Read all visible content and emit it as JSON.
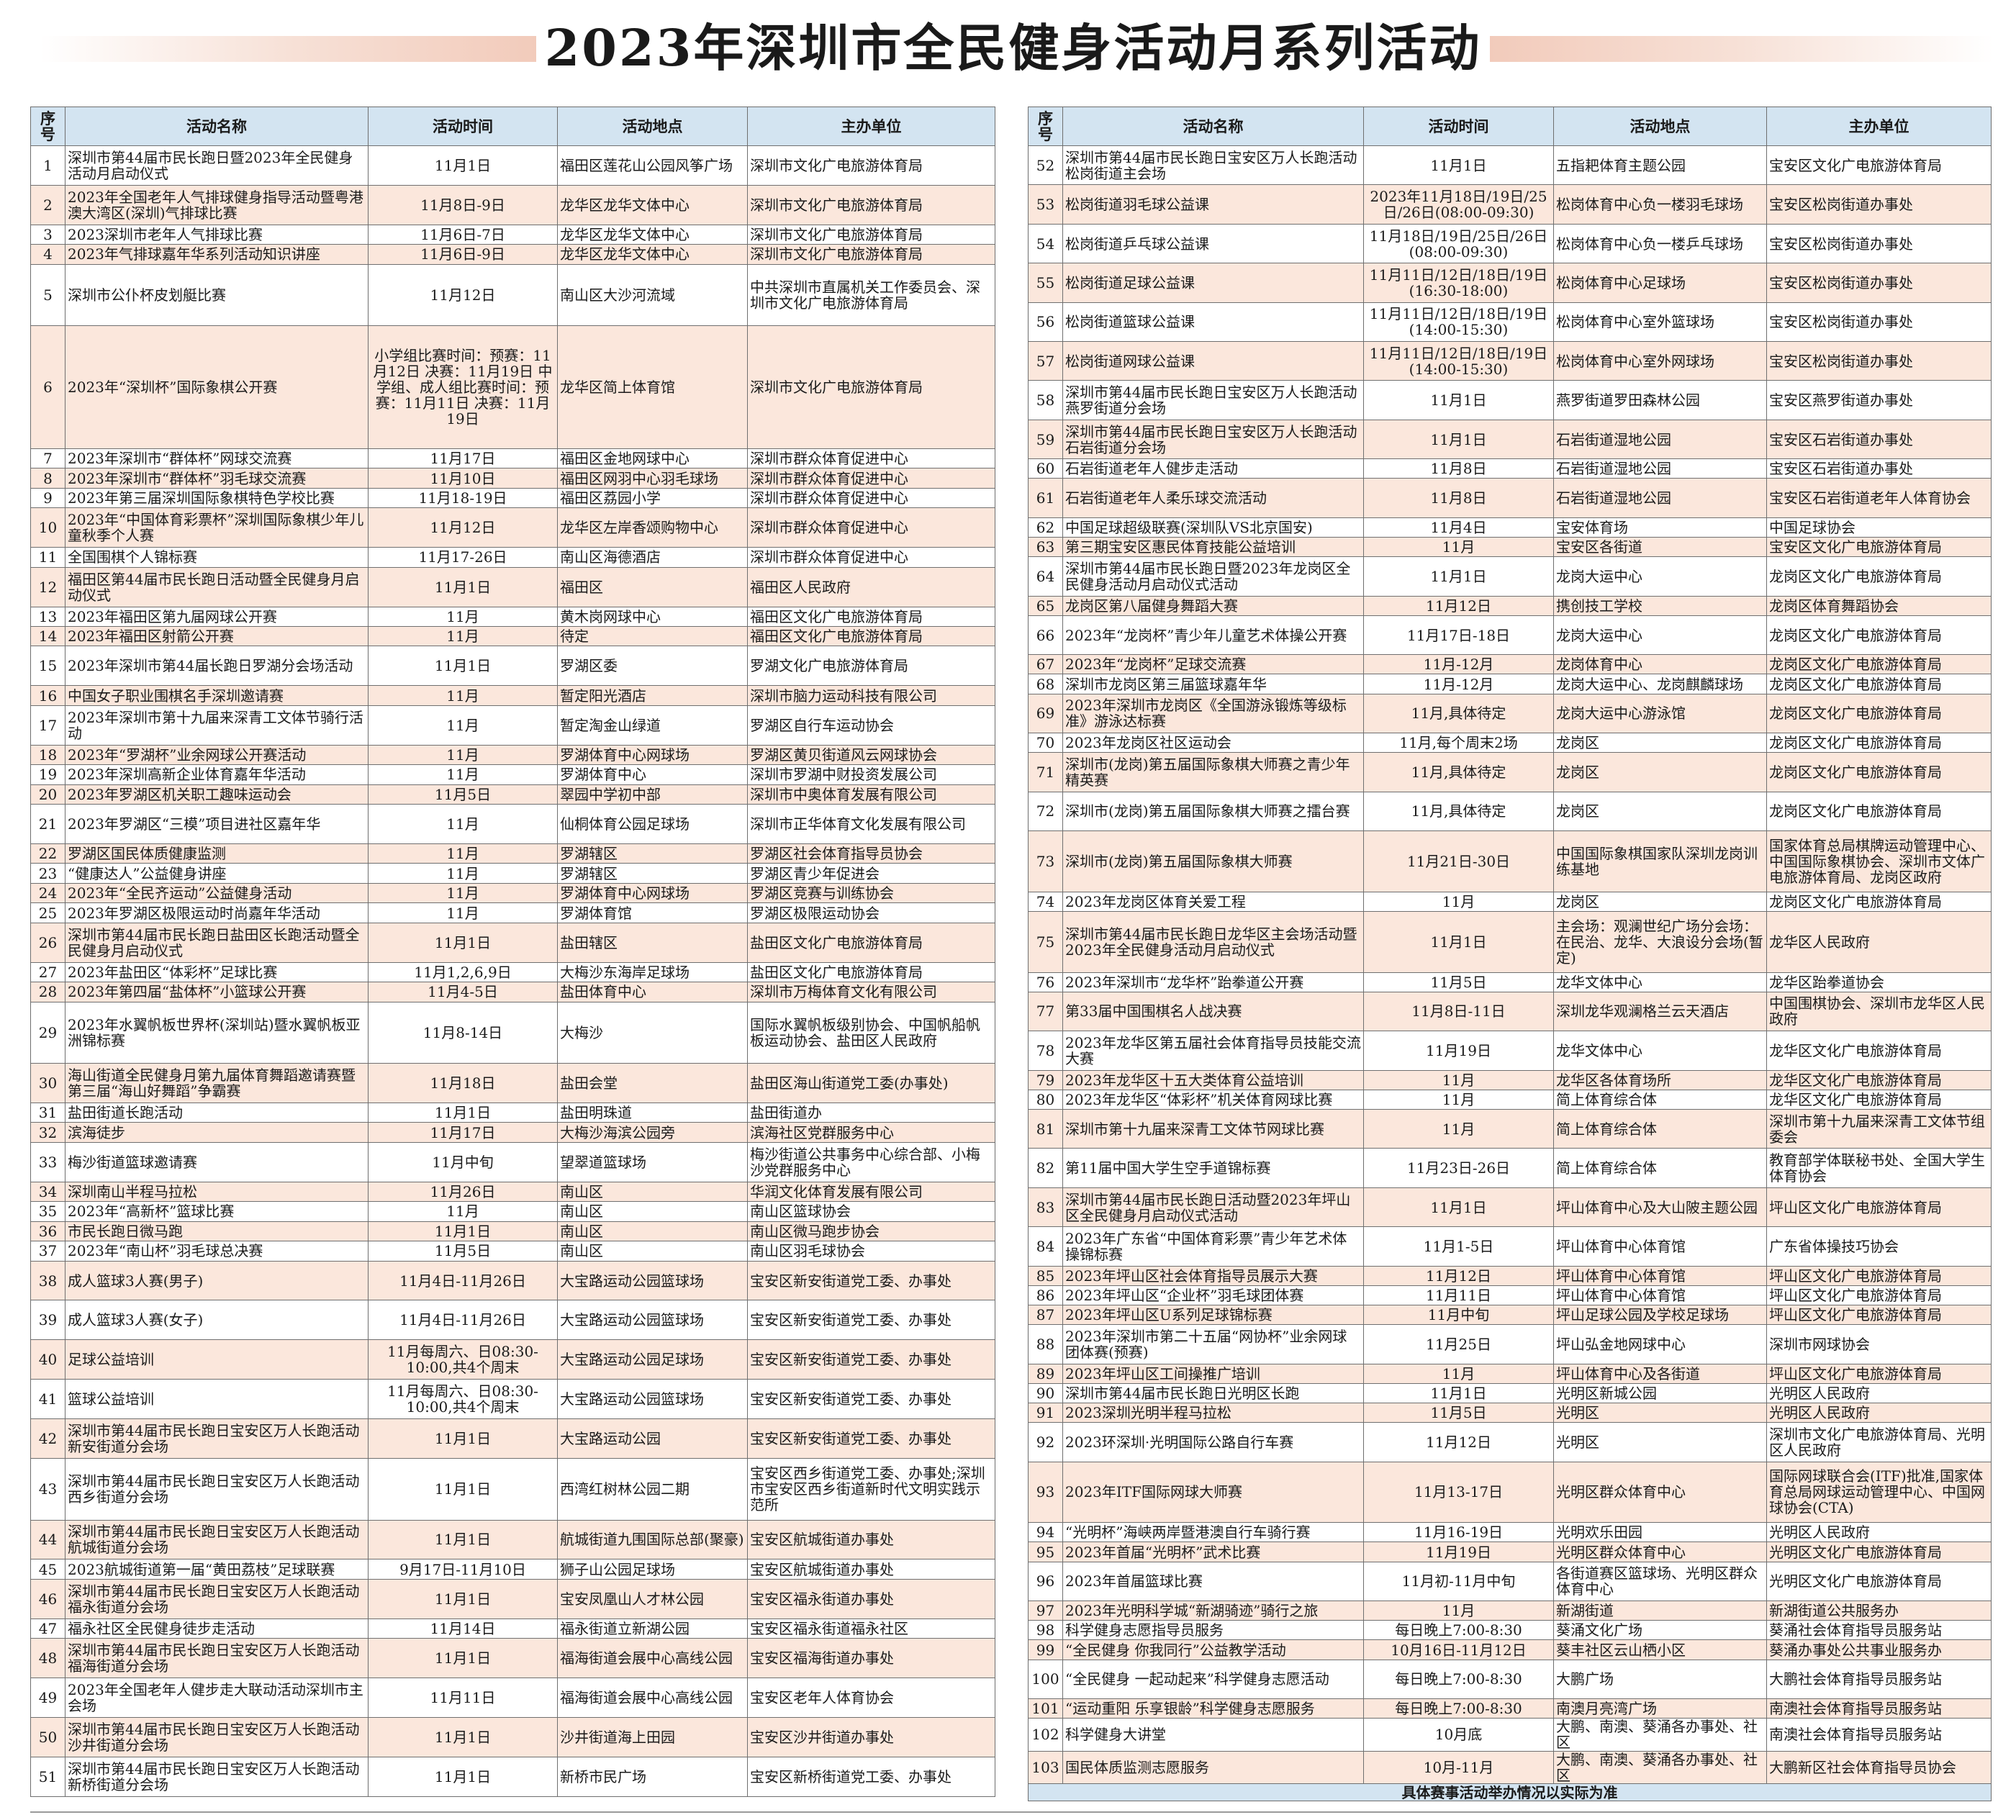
{
  "title": "2023年深圳市全民健身活动月系列活动",
  "headers": {
    "no": "序号",
    "name": "活动名称",
    "time": "活动时间",
    "place": "活动地点",
    "org": "主办单位"
  },
  "footnote": "具体赛事活动举办情况以实际为准",
  "left_rows": [
    {
      "no": "1",
      "name": "深圳市第44届市民长跑日暨2023年全民健身活动月启动仪式",
      "time": "11月1日",
      "place": "福田区莲花山公园风筝广场",
      "org": "深圳市文化广电旅游体育局",
      "h": 54
    },
    {
      "no": "2",
      "name": "2023年全国老年人气排球健身指导活动暨粤港澳大湾区(深圳)气排球比赛",
      "time": "11月8日-9日",
      "place": "龙华区龙华文体中心",
      "org": "深圳市文化广电旅游体育局",
      "h": 54
    },
    {
      "no": "3",
      "name": "2023深圳市老年人气排球比赛",
      "time": "11月6日-7日",
      "place": "龙华区龙华文体中心",
      "org": "深圳市文化广电旅游体育局",
      "h": 27
    },
    {
      "no": "4",
      "name": "2023年气排球嘉年华系列活动知识讲座",
      "time": "11月6日-9日",
      "place": "龙华区龙华文体中心",
      "org": "深圳市文化广电旅游体育局",
      "h": 27
    },
    {
      "no": "5",
      "name": "深圳市公仆杯皮划艇比赛",
      "time": "11月12日",
      "place": "南山区大沙河流域",
      "org": "中共深圳市直属机关工作委员会、深圳市文化广电旅游体育局",
      "h": 84
    },
    {
      "no": "6",
      "name": "2023年“深圳杯”国际象棋公开赛",
      "time": "小学组比赛时间：预赛：11月12日 决赛：11月19日 中学组、成人组比赛时间：预赛：11月11日 决赛：11月19日",
      "place": "龙华区简上体育馆",
      "org": "深圳市文化广电旅游体育局",
      "h": 168
    },
    {
      "no": "7",
      "name": "2023年深圳市“群体杯”网球交流赛",
      "time": "11月17日",
      "place": "福田区金地网球中心",
      "org": "深圳市群众体育促进中心",
      "h": 27
    },
    {
      "no": "8",
      "name": "2023年深圳市“群体杯”羽毛球交流赛",
      "time": "11月10日",
      "place": "福田区网羽中心羽毛球场",
      "org": "深圳市群众体育促进中心",
      "h": 27
    },
    {
      "no": "9",
      "name": "2023年第三届深圳国际象棋特色学校比赛",
      "time": "11月18-19日",
      "place": "福田区荔园小学",
      "org": "深圳市群众体育促进中心",
      "h": 27
    },
    {
      "no": "10",
      "name": "2023年“中国体育彩票杯”深圳国际象棋少年儿童秋季个人赛",
      "time": "11月12日",
      "place": "龙华区左岸香颂购物中心",
      "org": "深圳市群众体育促进中心",
      "h": 54
    },
    {
      "no": "11",
      "name": "全国围棋个人锦标赛",
      "time": "11月17-26日",
      "place": "南山区海德酒店",
      "org": "深圳市群众体育促进中心",
      "h": 27
    },
    {
      "no": "12",
      "name": "福田区第44届市民长跑日活动暨全民健身月启动仪式",
      "time": "11月1日",
      "place": "福田区",
      "org": "福田区人民政府",
      "h": 54
    },
    {
      "no": "13",
      "name": "2023年福田区第九届网球公开赛",
      "time": "11月",
      "place": "黄木岗网球中心",
      "org": "福田区文化广电旅游体育局",
      "h": 27
    },
    {
      "no": "14",
      "name": "2023年福田区射箭公开赛",
      "time": "11月",
      "place": "待定",
      "org": "福田区文化广电旅游体育局",
      "h": 27
    },
    {
      "no": "15",
      "name": "2023年深圳市第44届长跑日罗湖分会场活动",
      "time": "11月1日",
      "place": "罗湖区委",
      "org": "罗湖文化广电旅游体育局",
      "h": 54
    },
    {
      "no": "16",
      "name": "中国女子职业围棋名手深圳邀请赛",
      "time": "11月",
      "place": "暂定阳光酒店",
      "org": "深圳市脑力运动科技有限公司",
      "h": 27
    },
    {
      "no": "17",
      "name": "2023年深圳市第十九届来深青工文体节骑行活动",
      "time": "11月",
      "place": "暂定淘金山绿道",
      "org": "罗湖区自行车运动协会",
      "h": 54
    },
    {
      "no": "18",
      "name": "2023年“罗湖杯”业余网球公开赛活动",
      "time": "11月",
      "place": "罗湖体育中心网球场",
      "org": "罗湖区黄贝街道风云网球协会",
      "h": 27
    },
    {
      "no": "19",
      "name": "2023年深圳高新企业体育嘉年华活动",
      "time": "11月",
      "place": "罗湖体育中心",
      "org": "深圳市罗湖中财投资发展公司",
      "h": 27
    },
    {
      "no": "20",
      "name": "2023年罗湖区机关职工趣味运动会",
      "time": "11月5日",
      "place": "翠园中学初中部",
      "org": "深圳市中奥体育发展有限公司",
      "h": 27
    },
    {
      "no": "21",
      "name": "2023年罗湖区“三模”项目进社区嘉年华",
      "time": "11月",
      "place": "仙桐体育公园足球场",
      "org": "深圳市正华体育文化发展有限公司",
      "h": 54
    },
    {
      "no": "22",
      "name": "罗湖区国民体质健康监测",
      "time": "11月",
      "place": "罗湖辖区",
      "org": "罗湖区社会体育指导员协会",
      "h": 27
    },
    {
      "no": "23",
      "name": "“健康达人”公益健身讲座",
      "time": "11月",
      "place": "罗湖辖区",
      "org": "罗湖区青少年促进会",
      "h": 27
    },
    {
      "no": "24",
      "name": "2023年“全民齐运动”公益健身活动",
      "time": "11月",
      "place": "罗湖体育中心网球场",
      "org": "罗湖区竞赛与训练协会",
      "h": 27
    },
    {
      "no": "25",
      "name": "2023年罗湖区极限运动时尚嘉年华活动",
      "time": "11月",
      "place": "罗湖体育馆",
      "org": "罗湖区极限运动协会",
      "h": 27
    },
    {
      "no": "26",
      "name": "深圳市第44届市民长跑日盐田区长跑活动暨全民健身月启动仪式",
      "time": "11月1日",
      "place": "盐田辖区",
      "org": "盐田区文化广电旅游体育局",
      "h": 54
    },
    {
      "no": "27",
      "name": "2023年盐田区“体彩杯”足球比赛",
      "time": "11月1,2,6,9日",
      "place": "大梅沙东海岸足球场",
      "org": "盐田区文化广电旅游体育局",
      "h": 27
    },
    {
      "no": "28",
      "name": "2023年第四届“盐体杯”小篮球公开赛",
      "time": "11月4-5日",
      "place": "盐田体育中心",
      "org": "深圳市万梅体育文化有限公司",
      "h": 27
    },
    {
      "no": "29",
      "name": "2023年水翼帆板世界杯(深圳站)暨水翼帆板亚洲锦标赛",
      "time": "11月8-14日",
      "place": "大梅沙",
      "org": "国际水翼帆板级别协会、中国帆船帆板运动协会、盐田区人民政府",
      "h": 84
    },
    {
      "no": "30",
      "name": "海山街道全民健身月第九届体育舞蹈邀请赛暨第三届“海山好舞蹈”争霸赛",
      "time": "11月18日",
      "place": "盐田会堂",
      "org": "盐田区海山街道党工委(办事处)",
      "h": 54
    },
    {
      "no": "31",
      "name": "盐田街道长跑活动",
      "time": "11月1日",
      "place": "盐田明珠道",
      "org": "盐田街道办",
      "h": 27
    },
    {
      "no": "32",
      "name": "滨海徒步",
      "time": "11月17日",
      "place": "大梅沙海滨公园旁",
      "org": "滨海社区党群服务中心",
      "h": 27
    },
    {
      "no": "33",
      "name": "梅沙街道篮球邀请赛",
      "time": "11月中旬",
      "place": "望翠道篮球场",
      "org": "梅沙街道公共事务中心综合部、小梅沙党群服务中心",
      "h": 54
    },
    {
      "no": "34",
      "name": "深圳南山半程马拉松",
      "time": "11月26日",
      "place": "南山区",
      "org": "华润文化体育发展有限公司",
      "h": 27
    },
    {
      "no": "35",
      "name": "2023年“高新杯”篮球比赛",
      "time": "11月",
      "place": "南山区",
      "org": "南山区篮球协会",
      "h": 27
    },
    {
      "no": "36",
      "name": "市民长跑日微马跑",
      "time": "11月1日",
      "place": "南山区",
      "org": "南山区微马跑步协会",
      "h": 27
    },
    {
      "no": "37",
      "name": "2023年“南山杯”羽毛球总决赛",
      "time": "11月5日",
      "place": "南山区",
      "org": "南山区羽毛球协会",
      "h": 27
    },
    {
      "no": "38",
      "name": "成人篮球3人赛(男子)",
      "time": "11月4日-11月26日",
      "place": "大宝路运动公园篮球场",
      "org": "宝安区新安街道党工委、办事处",
      "h": 54
    },
    {
      "no": "39",
      "name": "成人篮球3人赛(女子)",
      "time": "11月4日-11月26日",
      "place": "大宝路运动公园篮球场",
      "org": "宝安区新安街道党工委、办事处",
      "h": 54
    },
    {
      "no": "40",
      "name": "足球公益培训",
      "time": "11月每周六、日08:30-10:00,共4个周末",
      "place": "大宝路运动公园足球场",
      "org": "宝安区新安街道党工委、办事处",
      "h": 54
    },
    {
      "no": "41",
      "name": "篮球公益培训",
      "time": "11月每周六、日08:30-10:00,共4个周末",
      "place": "大宝路运动公园篮球场",
      "org": "宝安区新安街道党工委、办事处",
      "h": 54
    },
    {
      "no": "42",
      "name": "深圳市第44届市民长跑日宝安区万人长跑活动新安街道分会场",
      "time": "11月1日",
      "place": "大宝路运动公园",
      "org": "宝安区新安街道党工委、办事处",
      "h": 54
    },
    {
      "no": "43",
      "name": "深圳市第44届市民长跑日宝安区万人长跑活动西乡街道分会场",
      "time": "11月1日",
      "place": "西湾红树林公园二期",
      "org": "宝安区西乡街道党工委、办事处;深圳市宝安区西乡街道新时代文明实践示范所",
      "h": 84
    },
    {
      "no": "44",
      "name": "深圳市第44届市民长跑日宝安区万人长跑活动航城街道分会场",
      "time": "11月1日",
      "place": "航城街道九围国际总部(聚豪)",
      "org": "宝安区航城街道办事处",
      "h": 54
    },
    {
      "no": "45",
      "name": "2023航城街道第一届“黄田荔枝”足球联赛",
      "time": "9月17日-11月10日",
      "place": "狮子山公园足球场",
      "org": "宝安区航城街道办事处",
      "h": 27
    },
    {
      "no": "46",
      "name": "深圳市第44届市民长跑日宝安区万人长跑活动福永街道分会场",
      "time": "11月1日",
      "place": "宝安凤凰山人才林公园",
      "org": "宝安区福永街道办事处",
      "h": 54
    },
    {
      "no": "47",
      "name": "福永社区全民健身徒步走活动",
      "time": "11月14日",
      "place": "福永街道立新湖公园",
      "org": "宝安区福永街道福永社区",
      "h": 27
    },
    {
      "no": "48",
      "name": "深圳市第44届市民长跑日宝安区万人长跑活动福海街道分会场",
      "time": "11月1日",
      "place": "福海街道会展中心高线公园",
      "org": "宝安区福海街道办事处",
      "h": 54
    },
    {
      "no": "49",
      "name": "2023年全国老年人健步走大联动活动深圳市主会场",
      "time": "11月11日",
      "place": "福海街道会展中心高线公园",
      "org": "宝安区老年人体育协会",
      "h": 54
    },
    {
      "no": "50",
      "name": "深圳市第44届市民长跑日宝安区万人长跑活动沙井街道分会场",
      "time": "11月1日",
      "place": "沙井街道海上田园",
      "org": "宝安区沙井街道办事处",
      "h": 54
    },
    {
      "no": "51",
      "name": "深圳市第44届市民长跑日宝安区万人长跑活动新桥街道分会场",
      "time": "11月1日",
      "place": "新桥市民广场",
      "org": "宝安区新桥街道党工委、办事处",
      "h": 54
    }
  ],
  "right_rows": [
    {
      "no": "52",
      "name": "深圳市第44届市民长跑日宝安区万人长跑活动松岗街道主会场",
      "time": "11月1日",
      "place": "五指耙体育主题公园",
      "org": "宝安区文化广电旅游体育局",
      "h": 54
    },
    {
      "no": "53",
      "name": "松岗街道羽毛球公益课",
      "time": "2023年11月18日/19日/25日/26日(08:00-09:30)",
      "place": "松岗体育中心负一楼羽毛球场",
      "org": "宝安区松岗街道办事处",
      "h": 54
    },
    {
      "no": "54",
      "name": "松岗街道乒乓球公益课",
      "time": "11月18日/19日/25日/26日(08:00-09:30)",
      "place": "松岗体育中心负一楼乒乓球场",
      "org": "宝安区松岗街道办事处",
      "h": 54
    },
    {
      "no": "55",
      "name": "松岗街道足球公益课",
      "time": "11月11日/12日/18日/19日(16:30-18:00)",
      "place": "松岗体育中心足球场",
      "org": "宝安区松岗街道办事处",
      "h": 54
    },
    {
      "no": "56",
      "name": "松岗街道篮球公益课",
      "time": "11月11日/12日/18日/19日(14:00-15:30)",
      "place": "松岗体育中心室外篮球场",
      "org": "宝安区松岗街道办事处",
      "h": 54
    },
    {
      "no": "57",
      "name": "松岗街道网球公益课",
      "time": "11月11日/12日/18日/19日(14:00-15:30)",
      "place": "松岗体育中心室外网球场",
      "org": "宝安区松岗街道办事处",
      "h": 54
    },
    {
      "no": "58",
      "name": "深圳市第44届市民长跑日宝安区万人长跑活动燕罗街道分会场",
      "time": "11月1日",
      "place": "燕罗街道罗田森林公园",
      "org": "宝安区燕罗街道办事处",
      "h": 54
    },
    {
      "no": "59",
      "name": "深圳市第44届市民长跑日宝安区万人长跑活动石岩街道分会场",
      "time": "11月1日",
      "place": "石岩街道湿地公园",
      "org": "宝安区石岩街道办事处",
      "h": 54
    },
    {
      "no": "60",
      "name": "石岩街道老年人健步走活动",
      "time": "11月8日",
      "place": "石岩街道湿地公园",
      "org": "宝安区石岩街道办事处",
      "h": 27
    },
    {
      "no": "61",
      "name": "石岩街道老年人柔乐球交流活动",
      "time": "11月8日",
      "place": "石岩街道湿地公园",
      "org": "宝安区石岩街道老年人体育协会",
      "h": 54
    },
    {
      "no": "62",
      "name": "中国足球超级联赛(深圳队VS北京国安)",
      "time": "11月4日",
      "place": "宝安体育场",
      "org": "中国足球协会",
      "h": 27
    },
    {
      "no": "63",
      "name": "第三期宝安区惠民体育技能公益培训",
      "time": "11月",
      "place": "宝安区各街道",
      "org": "宝安区文化广电旅游体育局",
      "h": 27
    },
    {
      "no": "64",
      "name": "深圳市第44届市民长跑日暨2023年龙岗区全民健身活动月启动仪式活动",
      "time": "11月1日",
      "place": "龙岗大运中心",
      "org": "龙岗区文化广电旅游体育局",
      "h": 54
    },
    {
      "no": "65",
      "name": "龙岗区第八届健身舞蹈大赛",
      "time": "11月12日",
      "place": "携创技工学校",
      "org": "龙岗区体育舞蹈协会",
      "h": 27
    },
    {
      "no": "66",
      "name": "2023年“龙岗杯”青少年儿童艺术体操公开赛",
      "time": "11月17日-18日",
      "place": "龙岗大运中心",
      "org": "龙岗区文化广电旅游体育局",
      "h": 54
    },
    {
      "no": "67",
      "name": "2023年“龙岗杯”足球交流赛",
      "time": "11月-12月",
      "place": "龙岗体育中心",
      "org": "龙岗区文化广电旅游体育局",
      "h": 27
    },
    {
      "no": "68",
      "name": "深圳市龙岗区第三届篮球嘉年华",
      "time": "11月-12月",
      "place": "龙岗大运中心、龙岗麒麟球场",
      "org": "龙岗区文化广电旅游体育局",
      "h": 27
    },
    {
      "no": "69",
      "name": "2023年深圳市龙岗区《全国游泳锻炼等级标准》游泳达标赛",
      "time": "11月,具体待定",
      "place": "龙岗大运中心游泳馆",
      "org": "龙岗区文化广电旅游体育局",
      "h": 54
    },
    {
      "no": "70",
      "name": "2023年龙岗区社区运动会",
      "time": "11月,每个周末2场",
      "place": "龙岗区",
      "org": "龙岗区文化广电旅游体育局",
      "h": 27
    },
    {
      "no": "71",
      "name": "深圳市(龙岗)第五届国际象棋大师赛之青少年精英赛",
      "time": "11月,具体待定",
      "place": "龙岗区",
      "org": "龙岗区文化广电旅游体育局",
      "h": 54
    },
    {
      "no": "72",
      "name": "深圳市(龙岗)第五届国际象棋大师赛之擂台赛",
      "time": "11月,具体待定",
      "place": "龙岗区",
      "org": "龙岗区文化广电旅游体育局",
      "h": 54
    },
    {
      "no": "73",
      "name": "深圳市(龙岗)第五届国际象棋大师赛",
      "time": "11月21日-30日",
      "place": "中国国际象棋国家队深圳龙岗训练基地",
      "org": "国家体育总局棋牌运动管理中心、中国国际象棋协会、深圳市文体广电旅游体育局、龙岗区政府",
      "h": 84
    },
    {
      "no": "74",
      "name": "2023年龙岗区体育关爱工程",
      "time": "11月",
      "place": "龙岗区",
      "org": "龙岗区文化广电旅游体育局",
      "h": 27
    },
    {
      "no": "75",
      "name": "深圳市第44届市民长跑日龙华区主会场活动暨2023年全民健身活动月启动仪式",
      "time": "11月1日",
      "place": "主会场：观澜世纪广场分会场：在民治、龙华、大浪设分会场(暂定)",
      "org": "龙华区人民政府",
      "h": 84
    },
    {
      "no": "76",
      "name": "2023年深圳市“龙华杯”跆拳道公开赛",
      "time": "11月5日",
      "place": "龙华文体中心",
      "org": "龙华区跆拳道协会",
      "h": 27
    },
    {
      "no": "77",
      "name": "第33届中国围棋名人战决赛",
      "time": "11月8日-11日",
      "place": "深圳龙华观澜格兰云天酒店",
      "org": "中国围棋协会、深圳市龙华区人民政府",
      "h": 54
    },
    {
      "no": "78",
      "name": "2023年龙华区第五届社会体育指导员技能交流大赛",
      "time": "11月19日",
      "place": "龙华文体中心",
      "org": "龙华区文化广电旅游体育局",
      "h": 54
    },
    {
      "no": "79",
      "name": "2023年龙华区十五大类体育公益培训",
      "time": "11月",
      "place": "龙华区各体育场所",
      "org": "龙华区文化广电旅游体育局",
      "h": 27
    },
    {
      "no": "80",
      "name": "2023年龙华区“体彩杯”机关体育网球比赛",
      "time": "11月",
      "place": "简上体育综合体",
      "org": "龙华区文化广电旅游体育局",
      "h": 27
    },
    {
      "no": "81",
      "name": "深圳市第十九届来深青工文体节网球比赛",
      "time": "11月",
      "place": "简上体育综合体",
      "org": "深圳市第十九届来深青工文体节组委会",
      "h": 54
    },
    {
      "no": "82",
      "name": "第11届中国大学生空手道锦标赛",
      "time": "11月23日-26日",
      "place": "简上体育综合体",
      "org": "教育部学体联秘书处、全国大学生体育协会",
      "h": 54
    },
    {
      "no": "83",
      "name": "深圳市第44届市民长跑日活动暨2023年坪山区全民健身月启动仪式活动",
      "time": "11月1日",
      "place": "坪山体育中心及大山陂主题公园",
      "org": "坪山区文化广电旅游体育局",
      "h": 54
    },
    {
      "no": "84",
      "name": "2023年广东省“中国体育彩票”青少年艺术体操锦标赛",
      "time": "11月1-5日",
      "place": "坪山体育中心体育馆",
      "org": "广东省体操技巧协会",
      "h": 54
    },
    {
      "no": "85",
      "name": "2023年坪山区社会体育指导员展示大赛",
      "time": "11月12日",
      "place": "坪山体育中心体育馆",
      "org": "坪山区文化广电旅游体育局",
      "h": 27
    },
    {
      "no": "86",
      "name": "2023年坪山区“企业杯”羽毛球团体赛",
      "time": "11月11日",
      "place": "坪山体育中心体育馆",
      "org": "坪山区文化广电旅游体育局",
      "h": 27
    },
    {
      "no": "87",
      "name": "2023年坪山区U系列足球锦标赛",
      "time": "11月中旬",
      "place": "坪山足球公园及学校足球场",
      "org": "坪山区文化广电旅游体育局",
      "h": 27
    },
    {
      "no": "88",
      "name": "2023年深圳市第二十五届“网协杯”业余网球团体赛(预赛)",
      "time": "11月25日",
      "place": "坪山弘金地网球中心",
      "org": "深圳市网球协会",
      "h": 54
    },
    {
      "no": "89",
      "name": "2023年坪山区工间操推广培训",
      "time": "11月",
      "place": "坪山体育中心及各街道",
      "org": "坪山区文化广电旅游体育局",
      "h": 27
    },
    {
      "no": "90",
      "name": "深圳市第44届市民长跑日光明区长跑",
      "time": "11月1日",
      "place": "光明区新城公园",
      "org": "光明区人民政府",
      "h": 27
    },
    {
      "no": "91",
      "name": "2023深圳光明半程马拉松",
      "time": "11月5日",
      "place": "光明区",
      "org": "光明区人民政府",
      "h": 27
    },
    {
      "no": "92",
      "name": "2023环深圳·光明国际公路自行车赛",
      "time": "11月12日",
      "place": "光明区",
      "org": "深圳市文化广电旅游体育局、光明区人民政府",
      "h": 54
    },
    {
      "no": "93",
      "name": "2023年ITF国际网球大师赛",
      "time": "11月13-17日",
      "place": "光明区群众体育中心",
      "org": "国际网球联合会(ITF)批准,国家体育总局网球运动管理中心、中国网球协会(CTA)",
      "h": 84
    },
    {
      "no": "94",
      "name": "“光明杯”海峡两岸暨港澳自行车骑行赛",
      "time": "11月16-19日",
      "place": "光明欢乐田园",
      "org": "光明区人民政府",
      "h": 27
    },
    {
      "no": "95",
      "name": "2023年首届“光明杯”武术比赛",
      "time": "11月19日",
      "place": "光明区群众体育中心",
      "org": "光明区文化广电旅游体育局",
      "h": 27
    },
    {
      "no": "96",
      "name": "2023年首届篮球比赛",
      "time": "11月初-11月中旬",
      "place": "各街道赛区篮球场、光明区群众体育中心",
      "org": "光明区文化广电旅游体育局",
      "h": 54
    },
    {
      "no": "97",
      "name": "2023年光明科学城“新湖骑迹”骑行之旅",
      "time": "11月",
      "place": "新湖街道",
      "org": "新湖街道公共服务办",
      "h": 27
    },
    {
      "no": "98",
      "name": "科学健身志愿指导员服务",
      "time": "每日晚上7:00-8:30",
      "place": "葵涌文化广场",
      "org": "葵涌社会体育指导员服务站",
      "h": 27
    },
    {
      "no": "99",
      "name": "“全民健身 你我同行”公益教学活动",
      "time": "10月16日-11月12日",
      "place": "葵丰社区云山栖小区",
      "org": "葵涌办事处公共事业服务办",
      "h": 27
    },
    {
      "no": "100",
      "name": "“全民健身 一起动起来”科学健身志愿活动",
      "time": "每日晚上7:00-8:30",
      "place": "大鹏广场",
      "org": "大鹏社会体育指导员服务站",
      "h": 54
    },
    {
      "no": "101",
      "name": "“运动重阳 乐享银龄”科学健身志愿服务",
      "time": "每日晚上7:00-8:30",
      "place": "南澳月亮湾广场",
      "org": "南澳社会体育指导员服务站",
      "h": 27
    },
    {
      "no": "102",
      "name": "科学健身大讲堂",
      "time": "10月底",
      "place": "大鹏、南澳、葵涌各办事处、社区",
      "org": "南澳社会体育指导员服务站",
      "h": 27
    },
    {
      "no": "103",
      "name": "国民体质监测志愿服务",
      "time": "10月-11月",
      "place": "大鹏、南澳、葵涌各办事处、社区",
      "org": "大鹏新区社会体育指导员协会",
      "h": 27
    }
  ]
}
